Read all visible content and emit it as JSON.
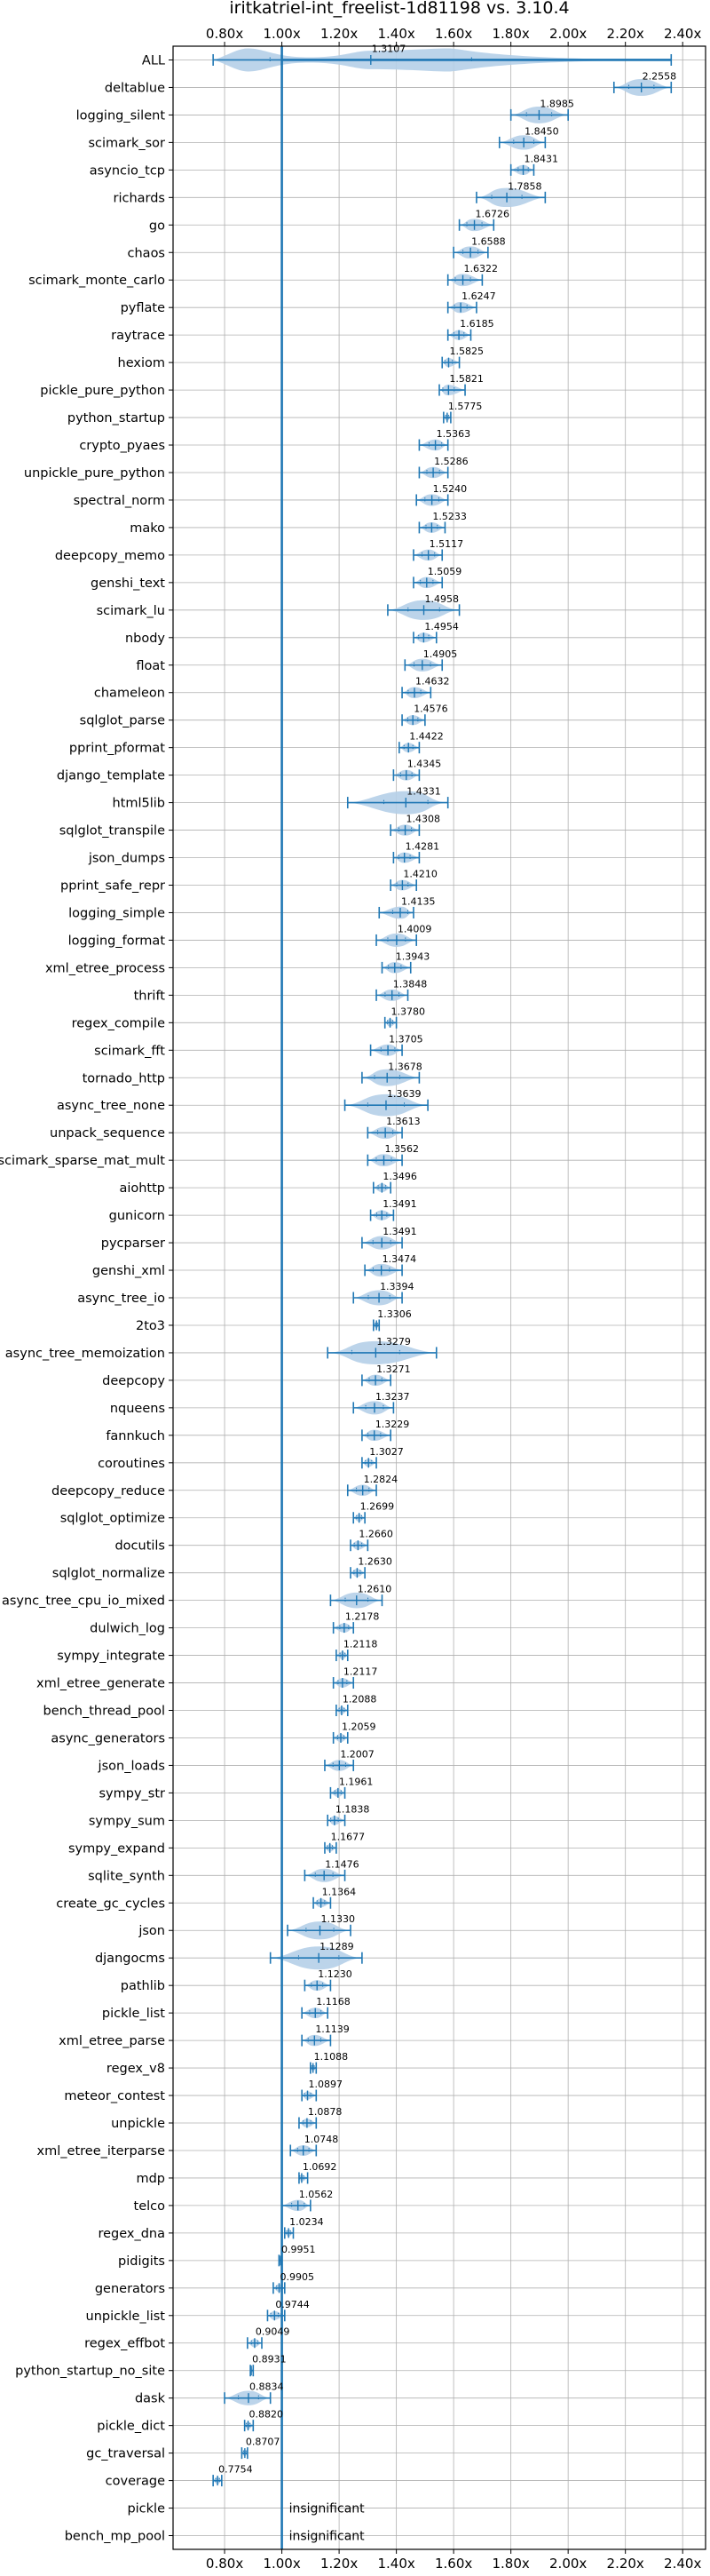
{
  "chart_data": {
    "type": "violin",
    "title": "iritkatriel-int_freelist-1d81198 vs. 3.10.4",
    "xlabel": "",
    "ylabel": "",
    "xlim": [
      0.62,
      2.48
    ],
    "xticks": [
      0.8,
      1.0,
      1.2,
      1.4,
      1.6,
      1.8,
      2.0,
      2.2,
      2.4
    ],
    "xtick_labels": [
      "0.80x",
      "1.00x",
      "1.20x",
      "1.40x",
      "1.60x",
      "1.80x",
      "2.00x",
      "2.20x",
      "2.40x"
    ],
    "reference_line": 1.0,
    "grid": true,
    "color": "#1f77b4",
    "fill_color": "#b5cfe8",
    "insignificant_label": "insignificant",
    "categories": [
      "ALL",
      "deltablue",
      "logging_silent",
      "scimark_sor",
      "asyncio_tcp",
      "richards",
      "go",
      "chaos",
      "scimark_monte_carlo",
      "pyflate",
      "raytrace",
      "hexiom",
      "pickle_pure_python",
      "python_startup",
      "crypto_pyaes",
      "unpickle_pure_python",
      "spectral_norm",
      "mako",
      "deepcopy_memo",
      "genshi_text",
      "scimark_lu",
      "nbody",
      "float",
      "chameleon",
      "sqlglot_parse",
      "pprint_pformat",
      "django_template",
      "html5lib",
      "sqlglot_transpile",
      "json_dumps",
      "pprint_safe_repr",
      "logging_simple",
      "logging_format",
      "xml_etree_process",
      "thrift",
      "regex_compile",
      "scimark_fft",
      "tornado_http",
      "async_tree_none",
      "unpack_sequence",
      "scimark_sparse_mat_mult",
      "aiohttp",
      "gunicorn",
      "pycparser",
      "genshi_xml",
      "async_tree_io",
      "2to3",
      "async_tree_memoization",
      "deepcopy",
      "nqueens",
      "fannkuch",
      "coroutines",
      "deepcopy_reduce",
      "sqlglot_optimize",
      "docutils",
      "sqlglot_normalize",
      "async_tree_cpu_io_mixed",
      "dulwich_log",
      "sympy_integrate",
      "xml_etree_generate",
      "bench_thread_pool",
      "async_generators",
      "json_loads",
      "sympy_str",
      "sympy_sum",
      "sympy_expand",
      "sqlite_synth",
      "create_gc_cycles",
      "json",
      "djangocms",
      "pathlib",
      "pickle_list",
      "xml_etree_parse",
      "regex_v8",
      "meteor_contest",
      "unpickle",
      "xml_etree_iterparse",
      "mdp",
      "telco",
      "regex_dna",
      "pidigits",
      "generators",
      "unpickle_list",
      "regex_effbot",
      "python_startup_no_site",
      "dask",
      "pickle_dict",
      "gc_traversal",
      "coverage",
      "pickle",
      "bench_mp_pool"
    ],
    "values": [
      1.3107,
      2.2558,
      1.8985,
      1.845,
      1.8431,
      1.7858,
      1.6726,
      1.6588,
      1.6322,
      1.6247,
      1.6185,
      1.5825,
      1.5821,
      1.5775,
      1.5363,
      1.5286,
      1.524,
      1.5233,
      1.5117,
      1.5059,
      1.4958,
      1.4954,
      1.4905,
      1.4632,
      1.4576,
      1.4422,
      1.4345,
      1.4331,
      1.4308,
      1.4281,
      1.421,
      1.4135,
      1.4009,
      1.3943,
      1.3848,
      1.378,
      1.3705,
      1.3678,
      1.3639,
      1.3613,
      1.3562,
      1.3496,
      1.3491,
      1.3491,
      1.3474,
      1.3394,
      1.3306,
      1.3279,
      1.3271,
      1.3237,
      1.3229,
      1.3027,
      1.2824,
      1.2699,
      1.266,
      1.263,
      1.261,
      1.2178,
      1.2118,
      1.2117,
      1.2088,
      1.2059,
      1.2007,
      1.1961,
      1.1838,
      1.1677,
      1.1476,
      1.1364,
      1.133,
      1.1289,
      1.123,
      1.1168,
      1.1139,
      1.1088,
      1.0897,
      1.0878,
      1.0748,
      1.0692,
      1.0562,
      1.0234,
      0.9951,
      0.9905,
      0.9744,
      0.9049,
      0.8931,
      0.8834,
      0.882,
      0.8707,
      0.7754,
      null,
      null
    ],
    "value_labels": [
      "1.3107",
      "2.2558",
      "1.8985",
      "1.8450",
      "1.8431",
      "1.7858",
      "1.6726",
      "1.6588",
      "1.6322",
      "1.6247",
      "1.6185",
      "1.5825",
      "1.5821",
      "1.5775",
      "1.5363",
      "1.5286",
      "1.5240",
      "1.5233",
      "1.5117",
      "1.5059",
      "1.4958",
      "1.4954",
      "1.4905",
      "1.4632",
      "1.4576",
      "1.4422",
      "1.4345",
      "1.4331",
      "1.4308",
      "1.4281",
      "1.4210",
      "1.4135",
      "1.4009",
      "1.3943",
      "1.3848",
      "1.3780",
      "1.3705",
      "1.3678",
      "1.3639",
      "1.3613",
      "1.3562",
      "1.3496",
      "1.3491",
      "1.3491",
      "1.3474",
      "1.3394",
      "1.3306",
      "1.3279",
      "1.3271",
      "1.3237",
      "1.3229",
      "1.3027",
      "1.2824",
      "1.2699",
      "1.2660",
      "1.2630",
      "1.2610",
      "1.2178",
      "1.2118",
      "1.2117",
      "1.2088",
      "1.2059",
      "1.2007",
      "1.1961",
      "1.1838",
      "1.1677",
      "1.1476",
      "1.1364",
      "1.1330",
      "1.1289",
      "1.1230",
      "1.1168",
      "1.1139",
      "1.1088",
      "1.0897",
      "1.0878",
      "1.0748",
      "1.0692",
      "1.0562",
      "1.0234",
      "0.9951",
      "0.9905",
      "0.9744",
      "0.9049",
      "0.8931",
      "0.8834",
      "0.8820",
      "0.8707",
      "0.7754",
      "",
      ""
    ],
    "ranges": [
      [
        0.76,
        2.36
      ],
      [
        2.16,
        2.36
      ],
      [
        1.8,
        2.0
      ],
      [
        1.76,
        1.92
      ],
      [
        1.8,
        1.88
      ],
      [
        1.68,
        1.92
      ],
      [
        1.62,
        1.74
      ],
      [
        1.6,
        1.72
      ],
      [
        1.58,
        1.7
      ],
      [
        1.58,
        1.68
      ],
      [
        1.58,
        1.66
      ],
      [
        1.56,
        1.62
      ],
      [
        1.55,
        1.64
      ],
      [
        1.565,
        1.59
      ],
      [
        1.48,
        1.58
      ],
      [
        1.48,
        1.58
      ],
      [
        1.47,
        1.58
      ],
      [
        1.48,
        1.57
      ],
      [
        1.46,
        1.56
      ],
      [
        1.46,
        1.56
      ],
      [
        1.37,
        1.62
      ],
      [
        1.46,
        1.54
      ],
      [
        1.43,
        1.56
      ],
      [
        1.42,
        1.52
      ],
      [
        1.42,
        1.5
      ],
      [
        1.41,
        1.48
      ],
      [
        1.39,
        1.48
      ],
      [
        1.23,
        1.58
      ],
      [
        1.38,
        1.48
      ],
      [
        1.39,
        1.48
      ],
      [
        1.38,
        1.47
      ],
      [
        1.34,
        1.46
      ],
      [
        1.33,
        1.47
      ],
      [
        1.35,
        1.45
      ],
      [
        1.33,
        1.44
      ],
      [
        1.36,
        1.4
      ],
      [
        1.31,
        1.42
      ],
      [
        1.28,
        1.48
      ],
      [
        1.22,
        1.51
      ],
      [
        1.3,
        1.42
      ],
      [
        1.3,
        1.42
      ],
      [
        1.32,
        1.38
      ],
      [
        1.31,
        1.39
      ],
      [
        1.28,
        1.42
      ],
      [
        1.29,
        1.42
      ],
      [
        1.25,
        1.42
      ],
      [
        1.32,
        1.34
      ],
      [
        1.16,
        1.54
      ],
      [
        1.28,
        1.38
      ],
      [
        1.25,
        1.39
      ],
      [
        1.28,
        1.38
      ],
      [
        1.28,
        1.33
      ],
      [
        1.23,
        1.33
      ],
      [
        1.25,
        1.29
      ],
      [
        1.24,
        1.3
      ],
      [
        1.24,
        1.29
      ],
      [
        1.17,
        1.35
      ],
      [
        1.18,
        1.25
      ],
      [
        1.19,
        1.23
      ],
      [
        1.18,
        1.25
      ],
      [
        1.19,
        1.23
      ],
      [
        1.18,
        1.23
      ],
      [
        1.15,
        1.25
      ],
      [
        1.17,
        1.22
      ],
      [
        1.16,
        1.22
      ],
      [
        1.15,
        1.19
      ],
      [
        1.08,
        1.22
      ],
      [
        1.11,
        1.17
      ],
      [
        1.02,
        1.24
      ],
      [
        0.96,
        1.28
      ],
      [
        1.08,
        1.17
      ],
      [
        1.07,
        1.16
      ],
      [
        1.07,
        1.17
      ],
      [
        1.1,
        1.12
      ],
      [
        1.07,
        1.12
      ],
      [
        1.06,
        1.12
      ],
      [
        1.03,
        1.12
      ],
      [
        1.06,
        1.09
      ],
      [
        1.0,
        1.1
      ],
      [
        1.01,
        1.04
      ],
      [
        0.99,
        1.0
      ],
      [
        0.97,
        1.01
      ],
      [
        0.95,
        1.01
      ],
      [
        0.88,
        0.93
      ],
      [
        0.89,
        0.9
      ],
      [
        0.8,
        0.96
      ],
      [
        0.87,
        0.9
      ],
      [
        0.86,
        0.88
      ],
      [
        0.76,
        0.79
      ],
      null,
      null
    ]
  }
}
